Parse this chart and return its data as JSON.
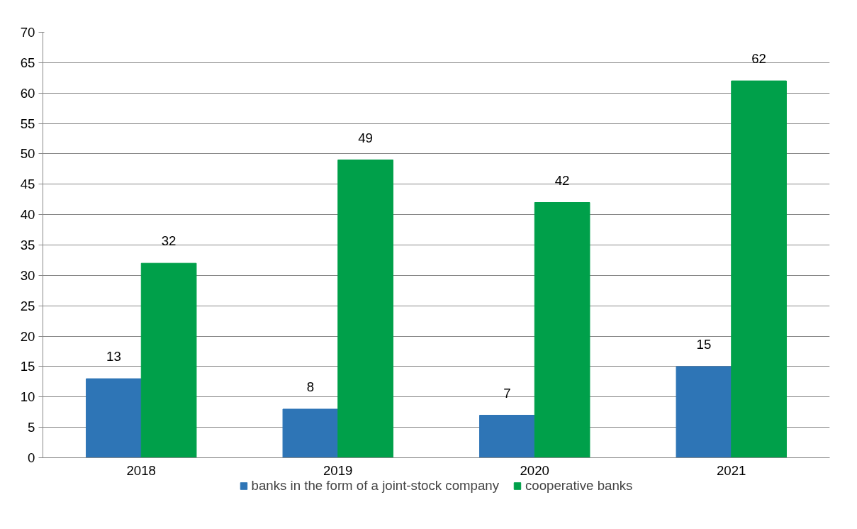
{
  "chart_data": {
    "type": "bar",
    "categories": [
      "2018",
      "2019",
      "2020",
      "2021"
    ],
    "series": [
      {
        "name": "banks in the form of a joint-stock company",
        "color": "#2e75b6",
        "values": [
          13,
          8,
          7,
          15
        ]
      },
      {
        "name": "cooperative banks",
        "color": "#00a04a",
        "values": [
          32,
          49,
          42,
          62
        ]
      }
    ],
    "ylim": [
      0,
      70
    ],
    "yticks": [
      0,
      5,
      10,
      15,
      20,
      25,
      30,
      35,
      40,
      45,
      50,
      55,
      60,
      65,
      70
    ],
    "grid": "y",
    "legend": "bottom",
    "data_labels": true
  }
}
